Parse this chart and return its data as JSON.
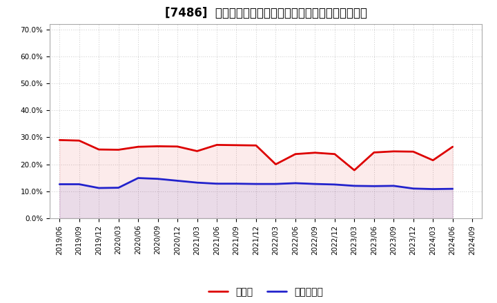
{
  "title": "[7486]  現預金、有利子負債の総資産に対する比率の推移",
  "x_labels": [
    "2019/06",
    "2019/09",
    "2019/12",
    "2020/03",
    "2020/06",
    "2020/09",
    "2020/12",
    "2021/03",
    "2021/06",
    "2021/09",
    "2021/12",
    "2022/03",
    "2022/06",
    "2022/09",
    "2022/12",
    "2023/03",
    "2023/06",
    "2023/09",
    "2023/12",
    "2024/03",
    "2024/06",
    "2024/09"
  ],
  "cash_ratio": [
    0.29,
    0.288,
    0.255,
    0.254,
    0.265,
    0.267,
    0.266,
    0.249,
    0.272,
    0.271,
    0.27,
    0.2,
    0.238,
    0.243,
    0.238,
    0.178,
    0.244,
    0.248,
    0.247,
    0.215,
    0.265,
    null
  ],
  "debt_ratio": [
    0.126,
    0.126,
    0.112,
    0.113,
    0.149,
    0.146,
    0.139,
    0.132,
    0.128,
    0.128,
    0.127,
    0.127,
    0.13,
    0.127,
    0.125,
    0.12,
    0.119,
    0.12,
    0.11,
    0.108,
    0.109,
    null
  ],
  "ylim": [
    0.0,
    0.72
  ],
  "yticks": [
    0.0,
    0.1,
    0.2,
    0.3,
    0.4,
    0.5,
    0.6,
    0.7
  ],
  "ytick_labels": [
    "0.0%",
    "10.0%",
    "20.0%",
    "30.0%",
    "40.0%",
    "50.0%",
    "60.0%",
    "70.0%"
  ],
  "cash_color": "#dd0000",
  "debt_color": "#2222cc",
  "bg_color": "#ffffff",
  "plot_bg_color": "#ffffff",
  "grid_color": "#999999",
  "legend_cash": "現預金",
  "legend_debt": "有利子負債",
  "title_fontsize": 12,
  "tick_fontsize": 7.5,
  "legend_fontsize": 10,
  "linewidth": 2.0
}
